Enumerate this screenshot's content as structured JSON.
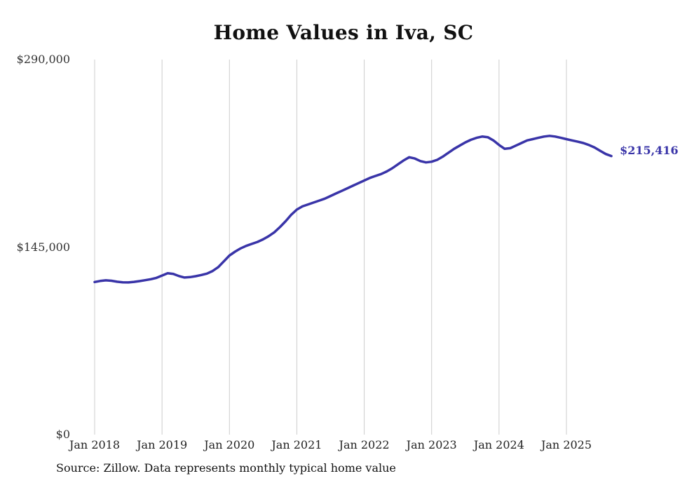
{
  "title": "Home Values in Iva, SC",
  "source_note": "Source: Zillow. Data represents monthly typical home value",
  "end_label": "$215,416",
  "colors": {
    "line": "#3934a8",
    "grid": "#cccccc",
    "title_text": "#111111",
    "axis_text": "#333333"
  },
  "chart_data": {
    "type": "line",
    "title": "Home Values in Iva, SC",
    "xlabel": "",
    "ylabel": "",
    "ylim": [
      0,
      290000
    ],
    "yticks": [
      0,
      145000,
      290000
    ],
    "ytick_labels": [
      "$0",
      "$145,000",
      "$290,000"
    ],
    "xtick_labels": [
      "Jan 2018",
      "Jan 2019",
      "Jan 2020",
      "Jan 2021",
      "Jan 2022",
      "Jan 2023",
      "Jan 2024",
      "Jan 2025"
    ],
    "grid": "vertical-only",
    "legend": "none",
    "annotation_last_value": "$215,416",
    "x": [
      "2018-01",
      "2018-02",
      "2018-03",
      "2018-04",
      "2018-05",
      "2018-06",
      "2018-07",
      "2018-08",
      "2018-09",
      "2018-10",
      "2018-11",
      "2018-12",
      "2019-01",
      "2019-02",
      "2019-03",
      "2019-04",
      "2019-05",
      "2019-06",
      "2019-07",
      "2019-08",
      "2019-09",
      "2019-10",
      "2019-11",
      "2019-12",
      "2020-01",
      "2020-02",
      "2020-03",
      "2020-04",
      "2020-05",
      "2020-06",
      "2020-07",
      "2020-08",
      "2020-09",
      "2020-10",
      "2020-11",
      "2020-12",
      "2021-01",
      "2021-02",
      "2021-03",
      "2021-04",
      "2021-05",
      "2021-06",
      "2021-07",
      "2021-08",
      "2021-09",
      "2021-10",
      "2021-11",
      "2021-12",
      "2022-01",
      "2022-02",
      "2022-03",
      "2022-04",
      "2022-05",
      "2022-06",
      "2022-07",
      "2022-08",
      "2022-09",
      "2022-10",
      "2022-11",
      "2022-12",
      "2023-01",
      "2023-02",
      "2023-03",
      "2023-04",
      "2023-05",
      "2023-06",
      "2023-07",
      "2023-08",
      "2023-09",
      "2023-10",
      "2023-11",
      "2023-12",
      "2024-01",
      "2024-02",
      "2024-03",
      "2024-04",
      "2024-05",
      "2024-06",
      "2024-07",
      "2024-08",
      "2024-09",
      "2024-10",
      "2024-11",
      "2024-12",
      "2025-01",
      "2025-02",
      "2025-03",
      "2025-04",
      "2025-05",
      "2025-06",
      "2025-07",
      "2025-08",
      "2025-09"
    ],
    "values": [
      118000,
      118800,
      119300,
      119000,
      118200,
      117800,
      117700,
      118100,
      118700,
      119400,
      120200,
      121200,
      123000,
      124800,
      124300,
      122600,
      121500,
      121800,
      122500,
      123400,
      124500,
      126500,
      129500,
      134000,
      138500,
      141500,
      144000,
      146000,
      147500,
      149000,
      151000,
      153500,
      156500,
      160500,
      165000,
      170000,
      174000,
      176500,
      178000,
      179500,
      181000,
      182500,
      184500,
      186500,
      188500,
      190500,
      192500,
      194500,
      196500,
      198500,
      200000,
      201500,
      203500,
      206000,
      209000,
      212000,
      214500,
      213500,
      211500,
      210500,
      211000,
      212500,
      215000,
      218000,
      221000,
      223500,
      226000,
      228000,
      229500,
      230500,
      230000,
      227500,
      224000,
      221000,
      221500,
      223500,
      225500,
      227500,
      228500,
      229500,
      230500,
      231000,
      230500,
      229500,
      228500,
      227500,
      226500,
      225500,
      224000,
      222000,
      219500,
      217000,
      215416
    ]
  }
}
